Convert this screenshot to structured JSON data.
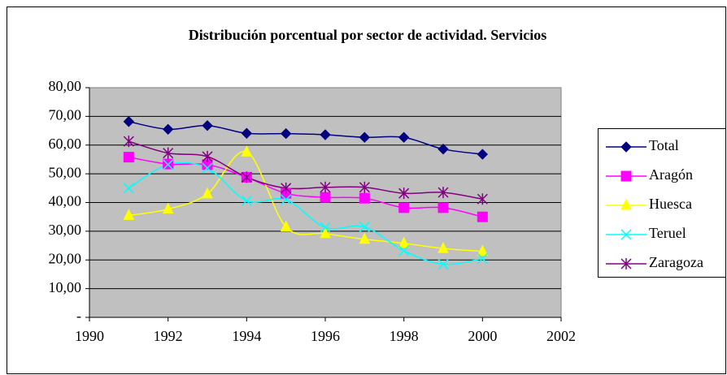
{
  "chart_data": {
    "type": "line",
    "title": "Distribución porcentual por sector de actividad. Servicios",
    "x": [
      1991,
      1992,
      1993,
      1994,
      1995,
      1996,
      1997,
      1998,
      1999,
      2000
    ],
    "series": [
      {
        "name": "Total",
        "color": "#000080",
        "marker": "diamond",
        "values": [
          68.2,
          65.5,
          66.8,
          64.1,
          64.0,
          63.6,
          62.7,
          62.7,
          58.6,
          56.8
        ]
      },
      {
        "name": "Aragón",
        "color": "#ff00ff",
        "marker": "square",
        "values": [
          55.8,
          53.4,
          53.2,
          48.8,
          43.2,
          41.8,
          41.5,
          38.2,
          38.2,
          35.0
        ]
      },
      {
        "name": "Huesca",
        "color": "#ffff00",
        "marker": "triangle",
        "values": [
          35.5,
          37.7,
          43.0,
          57.6,
          31.5,
          29.2,
          27.2,
          25.8,
          24.0,
          23.0
        ]
      },
      {
        "name": "Teruel",
        "color": "#00ffff",
        "marker": "x",
        "values": [
          45.0,
          53.2,
          52.0,
          40.6,
          41.0,
          31.3,
          31.5,
          23.2,
          18.5,
          20.5
        ]
      },
      {
        "name": "Zaragoza",
        "color": "#800080",
        "marker": "asterisk",
        "values": [
          61.3,
          57.2,
          56.0,
          48.8,
          45.0,
          45.3,
          45.3,
          43.2,
          43.5,
          41.2
        ]
      }
    ],
    "xlim": [
      1990,
      2002
    ],
    "xticks": [
      1990,
      1992,
      1994,
      1996,
      1998,
      2000,
      2002
    ],
    "ylim": [
      0,
      80
    ],
    "yticks": [
      {
        "value": 0,
        "label": "-"
      },
      {
        "value": 10,
        "label": "10,00"
      },
      {
        "value": 20,
        "label": "20,00"
      },
      {
        "value": 30,
        "label": "30,00"
      },
      {
        "value": 40,
        "label": "40,00"
      },
      {
        "value": 50,
        "label": "50,00"
      },
      {
        "value": 60,
        "label": "60,00"
      },
      {
        "value": 70,
        "label": "70,00"
      },
      {
        "value": 80,
        "label": "80,00"
      }
    ],
    "grid": true,
    "smooth": true,
    "legend": "right",
    "plot_background": "#c0c0c0"
  }
}
